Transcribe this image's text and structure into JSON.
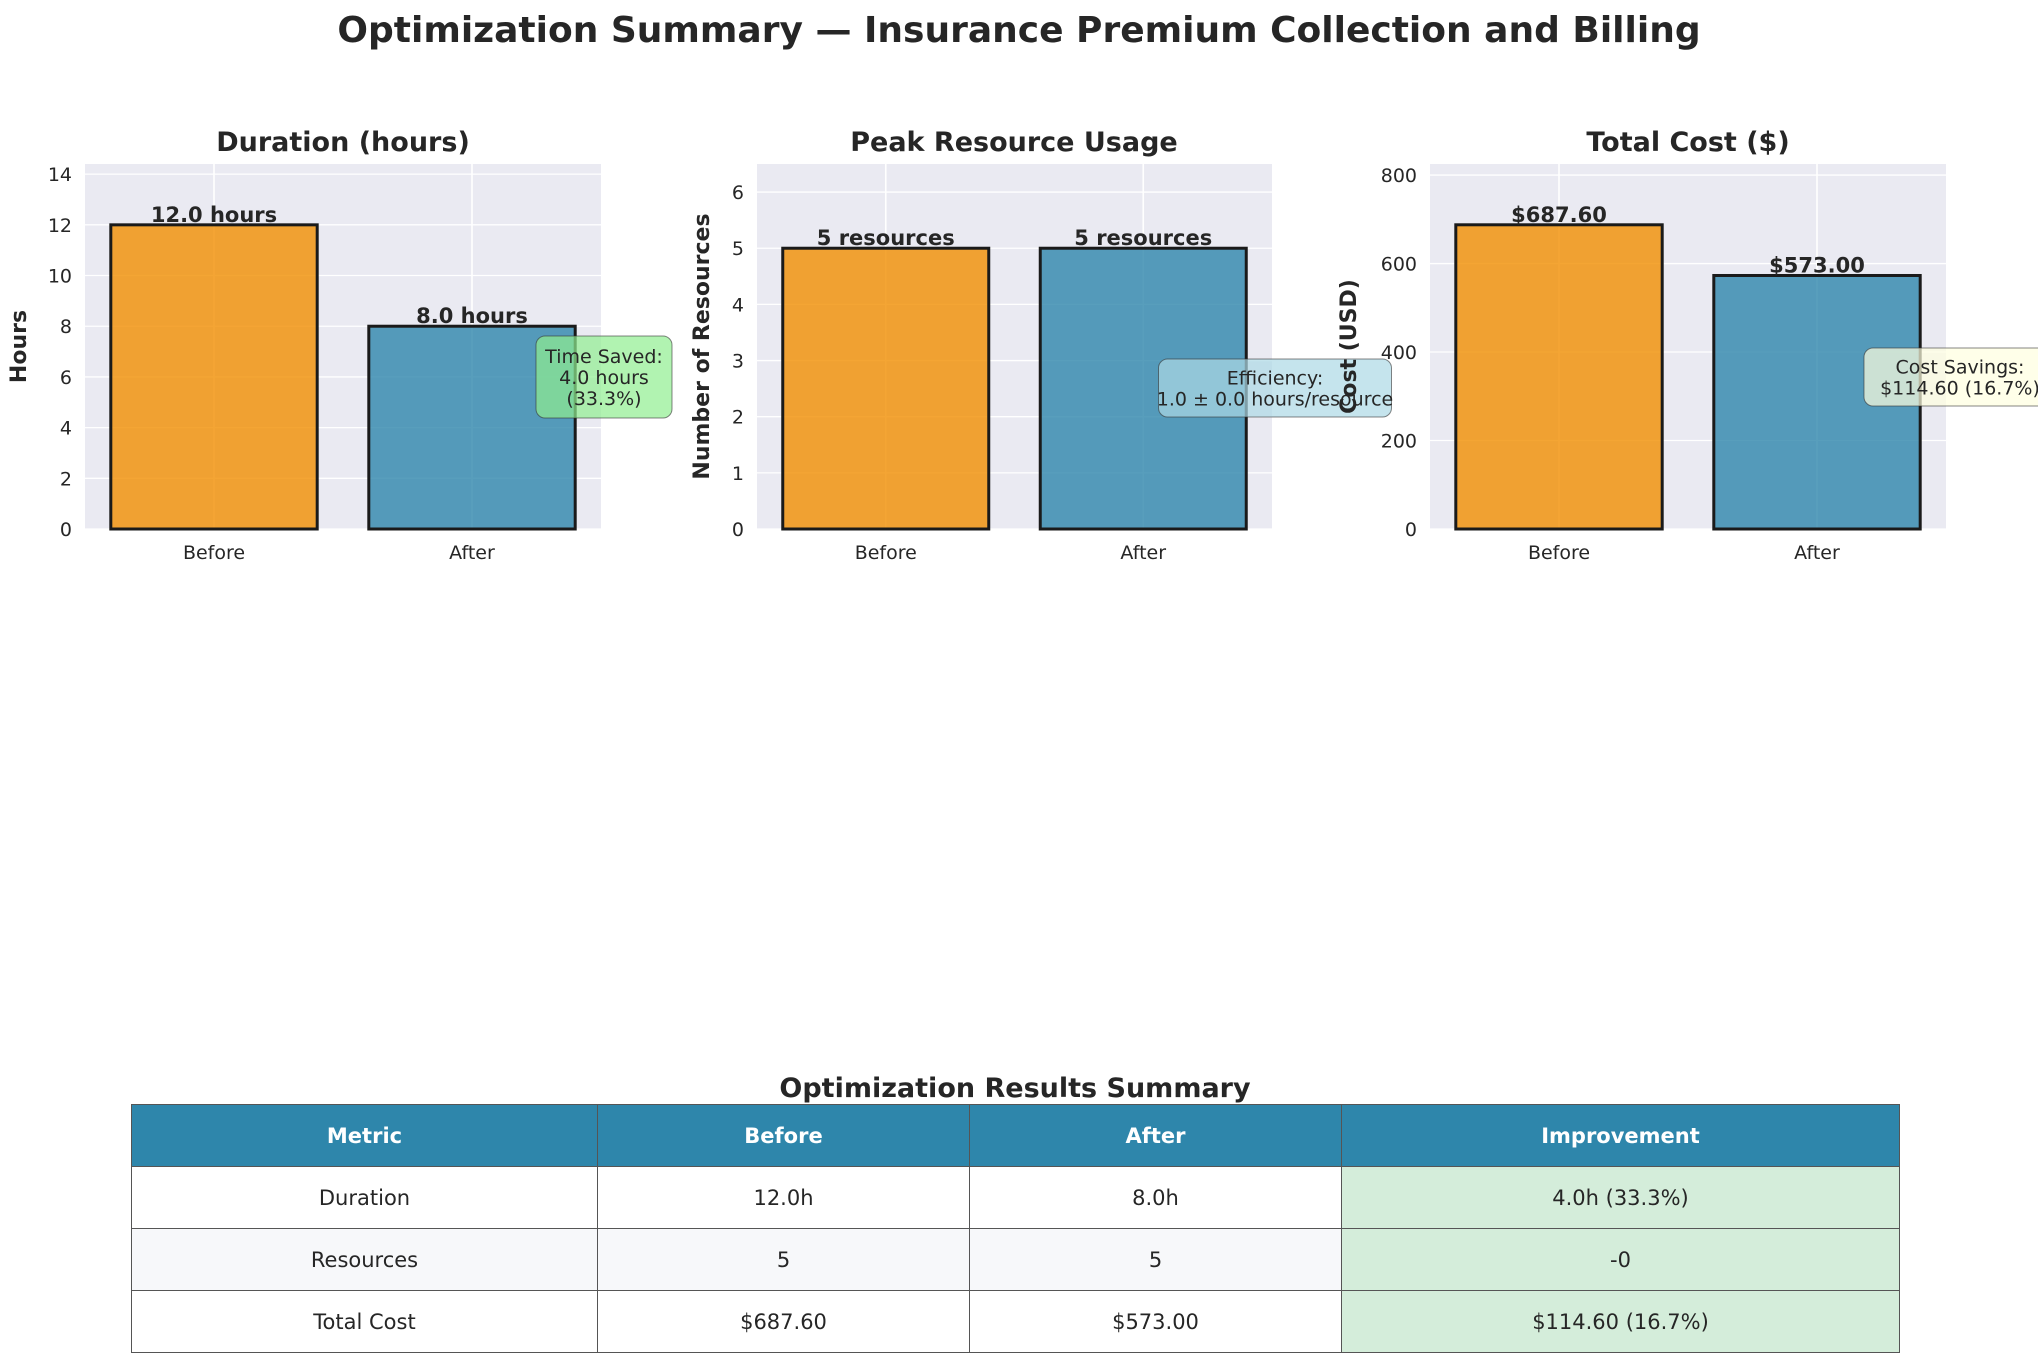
{
  "figure_title": "Optimization Summary — Insurance Premium Collection and Billing",
  "colors": {
    "before": "#f18f01",
    "after": "#2e86ab",
    "panel_bg": "#eaeaf2",
    "header_bg": "#2e86ab",
    "improvement_bg": "#d4edda"
  },
  "chart_data": [
    {
      "type": "bar",
      "title": "Duration (hours)",
      "xlabel": "",
      "ylabel": "Hours",
      "categories": [
        "Before",
        "After"
      ],
      "values": [
        12.0,
        8.0
      ],
      "bar_labels": [
        "12.0 hours",
        "8.0 hours"
      ],
      "ylim": [
        0,
        14.4
      ],
      "yticks": [
        0,
        2,
        4,
        6,
        8,
        10,
        12,
        14
      ],
      "grid": true,
      "annotation": "Time Saved:\n4.0 hours\n(33.3%)",
      "annotation_color": "#90ee90"
    },
    {
      "type": "bar",
      "title": "Peak Resource Usage",
      "xlabel": "",
      "ylabel": "Number of Resources",
      "categories": [
        "Before",
        "After"
      ],
      "values": [
        5,
        5
      ],
      "bar_labels": [
        "5 resources",
        "5 resources"
      ],
      "ylim": [
        0,
        6.5
      ],
      "yticks": [
        0,
        1,
        2,
        3,
        4,
        5,
        6
      ],
      "grid": true,
      "annotation": "Efficiency:\n1.0 ± 0.0 hours/resource",
      "annotation_color": "#add8e6"
    },
    {
      "type": "bar",
      "title": "Total Cost ($)",
      "xlabel": "",
      "ylabel": "Cost (USD)",
      "categories": [
        "Before",
        "After"
      ],
      "values": [
        687.6,
        573.0
      ],
      "bar_labels": [
        "$687.60",
        "$573.00"
      ],
      "ylim": [
        0,
        825
      ],
      "yticks": [
        0,
        200,
        400,
        600,
        800
      ],
      "grid": true,
      "annotation": "Cost Savings:\n$114.60 (16.7%)",
      "annotation_color": "#ffffe0"
    }
  ],
  "table": {
    "title": "Optimization Results Summary",
    "headers": [
      "Metric",
      "Before",
      "After",
      "Improvement"
    ],
    "rows": [
      [
        "Duration",
        "12.0h",
        "8.0h",
        "4.0h (33.3%)"
      ],
      [
        "Resources",
        "5",
        "5",
        "-0"
      ],
      [
        "Total Cost",
        "$687.60",
        "$573.00",
        "$114.60 (16.7%)"
      ]
    ]
  }
}
